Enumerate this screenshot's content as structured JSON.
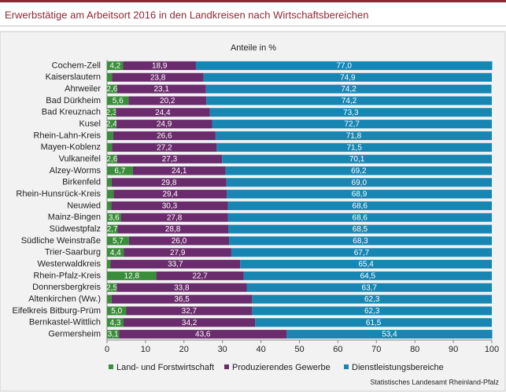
{
  "chart_data": {
    "type": "stacked-bar-horizontal",
    "title": "Erwerbstätige am Arbeitsort 2016 in den Landkreisen nach Wirtschaftsbereichen",
    "subtitle": "Anteile in %",
    "source": "Statistisches Landesamt Rheinland-Pfalz",
    "categories": [
      "Cochem-Zell",
      "Kaiserslautern",
      "Ahrweiler",
      "Bad Dürkheim",
      "Bad Kreuznach",
      "Kusel",
      "Rhein-Lahn-Kreis",
      "Mayen-Koblenz",
      "Vulkaneifel",
      "Alzey-Worms",
      "Birkenfeld",
      "Rhein-Hunsrück-Kreis",
      "Neuwied",
      "Mainz-Bingen",
      "Südwestpfalz",
      "Südliche Weinstraße",
      "Trier-Saarburg",
      "Westerwaldkreis",
      "Rhein-Pfalz-Kreis",
      "Donnersbergkreis",
      "Altenkirchen (Ww.)",
      "Eifelkreis Bitburg-Prüm",
      "Bernkastel-Wittlich",
      "Germersheim"
    ],
    "series": [
      {
        "name": "Land- und Forstwirtschaft",
        "color": "#3a8d3a",
        "values": [
          4.2,
          1.3,
          2.6,
          5.6,
          2.3,
          2.4,
          1.6,
          1.3,
          2.6,
          6.7,
          1.2,
          1.7,
          1.1,
          3.6,
          2.7,
          5.7,
          4.4,
          0.9,
          12.8,
          2.5,
          1.2,
          5.0,
          4.3,
          3.1
        ],
        "value_labels": [
          "4,2",
          null,
          "2,6",
          "5,6",
          "2,3",
          "2,4",
          null,
          null,
          "2,6",
          "6,7",
          null,
          null,
          null,
          "3,6",
          "2,7",
          "5,7",
          "4,4",
          null,
          "12,8",
          "2,5",
          null,
          "5,0",
          "4,3",
          "3,1"
        ]
      },
      {
        "name": "Produzierendes Gewerbe",
        "color": "#6a2c6c",
        "values": [
          18.9,
          23.8,
          23.1,
          20.2,
          24.4,
          24.9,
          26.6,
          27.2,
          27.3,
          24.1,
          29.8,
          29.4,
          30.3,
          27.8,
          28.8,
          26.0,
          27.9,
          33.7,
          22.7,
          33.8,
          36.5,
          32.7,
          34.2,
          43.6
        ],
        "value_labels": [
          "18,9",
          "23,8",
          "23,1",
          "20,2",
          "24,4",
          "24,9",
          "26,6",
          "27,2",
          "27,3",
          "24,1",
          "29,8",
          "29,4",
          "30,3",
          "27,8",
          "28,8",
          "26,0",
          "27,9",
          "33,7",
          "22,7",
          "33,8",
          "36,5",
          "32,7",
          "34,2",
          "43,6"
        ]
      },
      {
        "name": "Dienstleistungsbereiche",
        "color": "#1786b3",
        "values": [
          77.0,
          74.9,
          74.2,
          74.2,
          73.3,
          72.7,
          71.8,
          71.5,
          70.1,
          69.2,
          69.0,
          68.9,
          68.6,
          68.6,
          68.5,
          68.3,
          67.7,
          65.4,
          64.5,
          63.7,
          62.3,
          62.3,
          61.5,
          53.4
        ],
        "value_labels": [
          "77,0",
          "74,9",
          "74,2",
          "74,2",
          "73,3",
          "72,7",
          "71,8",
          "71,5",
          "70,1",
          "69,2",
          "69,0",
          "68,9",
          "68,6",
          "68,6",
          "68,5",
          "68,3",
          "67,7",
          "65,4",
          "64,5",
          "63,7",
          "62,3",
          "62,3",
          "61,5",
          "53,4"
        ]
      }
    ],
    "xlim": [
      0,
      100
    ],
    "xticks": [
      0,
      10,
      20,
      30,
      40,
      50,
      60,
      70,
      80,
      90,
      100
    ],
    "grid": false
  }
}
